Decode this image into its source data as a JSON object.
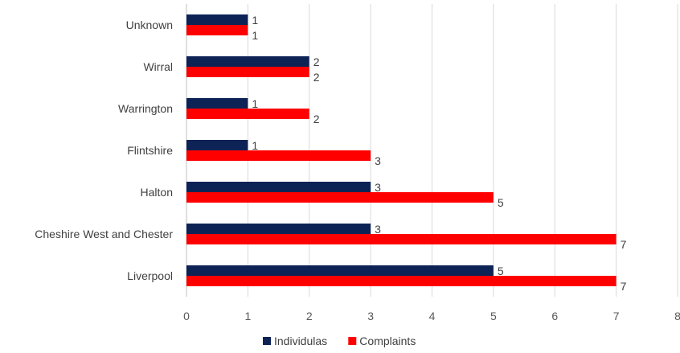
{
  "chart_data": {
    "type": "bar",
    "orientation": "horizontal",
    "categories": [
      "Unknown",
      "Wirral",
      "Warrington",
      "Flintshire",
      "Halton",
      "Cheshire West and Chester",
      "Liverpool"
    ],
    "series": [
      {
        "name": "Individulas",
        "color": "#0d2356",
        "values": [
          1,
          2,
          1,
          1,
          3,
          3,
          5
        ]
      },
      {
        "name": "Complaints",
        "color": "#ff0000",
        "values": [
          1,
          2,
          2,
          3,
          5,
          7,
          7
        ]
      }
    ],
    "xlim": [
      0,
      8
    ],
    "xticks": [
      0,
      1,
      2,
      3,
      4,
      5,
      6,
      7,
      8
    ],
    "grid": true,
    "legend_position": "bottom",
    "title": "",
    "xlabel": "",
    "ylabel": ""
  }
}
